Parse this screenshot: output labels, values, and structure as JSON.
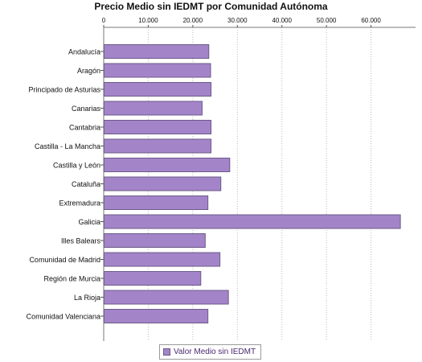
{
  "chart_data": {
    "type": "bar",
    "orientation": "horizontal",
    "title": "Precio Medio sin IEDMT por Comunidad Autónoma",
    "categories": [
      "Andalucía",
      "Aragón",
      "Principado de Asturias",
      "Canarias",
      "Cantabria",
      "Castilla - La Mancha",
      "Castilla y León",
      "Cataluña",
      "Extremadura",
      "Galicia",
      "Illes Balears",
      "Comunidad de Madrid",
      "Región de Murcia",
      "La Rioja",
      "Comunidad Valenciana"
    ],
    "series": [
      {
        "name": "Valor Medio sin IEDMT",
        "values": [
          23500,
          23900,
          24000,
          22000,
          24000,
          24000,
          28200,
          26200,
          23300,
          66500,
          22700,
          26000,
          21700,
          27900,
          23300
        ]
      }
    ],
    "xlim": [
      0,
      70000
    ],
    "x_ticks": [
      0,
      10000,
      20000,
      30000,
      40000,
      50000,
      60000
    ],
    "x_tick_labels": [
      "0",
      "10.000",
      "20.000",
      "30.000",
      "40.000",
      "50.000",
      "60.000"
    ],
    "axis_position": "top",
    "grid": true,
    "legend_position": "bottom",
    "bar_color": "#a384c9",
    "bar_stroke": "#6b5a86",
    "grid_color": "#b8b8b8"
  }
}
